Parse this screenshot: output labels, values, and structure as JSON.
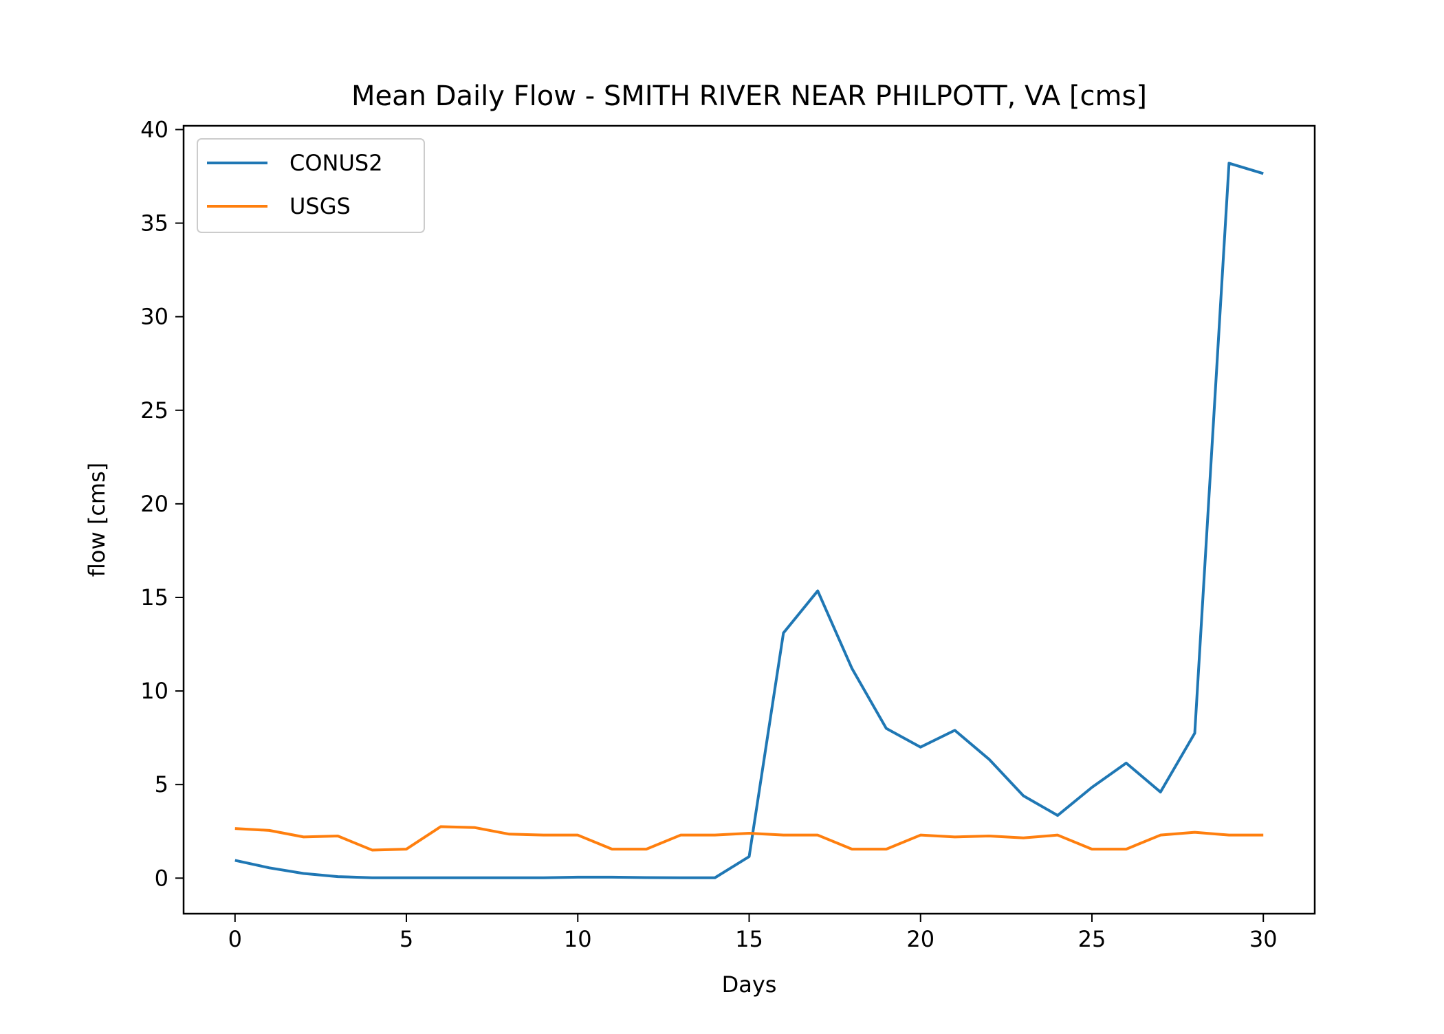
{
  "chart_data": {
    "type": "line",
    "title": "Mean Daily Flow - SMITH RIVER NEAR PHILPOTT, VA [cms]",
    "xlabel": "Days",
    "ylabel": "flow [cms]",
    "xlim": [
      -1.5,
      31.5
    ],
    "ylim": [
      -1.9,
      40.2
    ],
    "xticks": [
      0,
      5,
      10,
      15,
      20,
      25,
      30
    ],
    "yticks": [
      0,
      5,
      10,
      15,
      20,
      25,
      30,
      35,
      40
    ],
    "legend_position": "top-left",
    "grid": false,
    "x": [
      0,
      1,
      2,
      3,
      4,
      5,
      6,
      7,
      8,
      9,
      10,
      11,
      12,
      13,
      14,
      15,
      16,
      17,
      18,
      19,
      20,
      21,
      22,
      23,
      24,
      25,
      26,
      27,
      28,
      29,
      30
    ],
    "series": [
      {
        "name": "CONUS2",
        "color": "#1f77b4",
        "values": [
          0.95,
          0.55,
          0.25,
          0.08,
          0.02,
          0.02,
          0.02,
          0.02,
          0.02,
          0.02,
          0.05,
          0.05,
          0.03,
          0.02,
          0.02,
          1.15,
          13.1,
          15.35,
          11.2,
          8.0,
          7.0,
          7.9,
          6.35,
          4.4,
          3.35,
          4.85,
          6.15,
          4.6,
          7.75,
          38.2,
          37.65
        ]
      },
      {
        "name": "USGS",
        "color": "#ff7f0e",
        "values": [
          2.65,
          2.55,
          2.2,
          2.25,
          1.5,
          1.55,
          2.75,
          2.7,
          2.35,
          2.3,
          2.3,
          1.55,
          1.55,
          2.3,
          2.3,
          2.4,
          2.3,
          2.3,
          1.55,
          1.55,
          2.3,
          2.2,
          2.25,
          2.15,
          2.3,
          1.55,
          1.55,
          2.3,
          2.45,
          2.3,
          2.3
        ]
      }
    ]
  }
}
